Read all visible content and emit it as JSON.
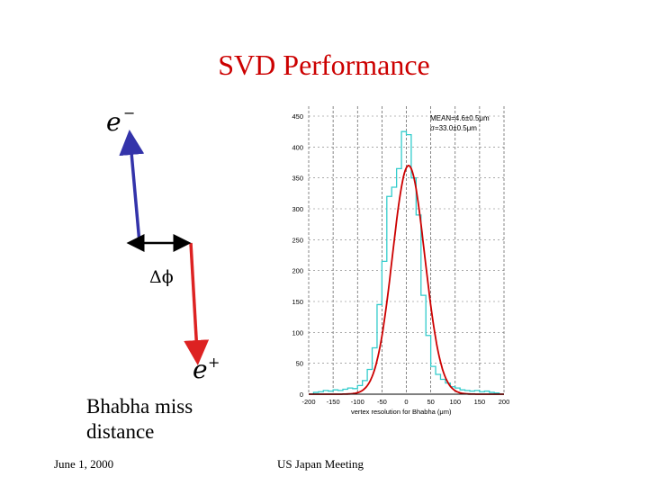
{
  "slide": {
    "title": "SVD Performance",
    "caption": "Bhabha miss\ndistance",
    "footer_left": "June 1, 2000",
    "footer_center": "US Japan Meeting"
  },
  "diagram": {
    "electron_label": "e",
    "electron_sup": "−",
    "positron_label": "e",
    "positron_sup": "+",
    "delta_phi_label": "Δϕ",
    "electron_color": "#3333aa",
    "positron_color": "#dd2222"
  },
  "chart_data": {
    "type": "histogram",
    "xlabel": "vertex resolution for Bhabha (μm)",
    "ylabel": "",
    "xlim": [
      -200,
      200
    ],
    "ylim": [
      0,
      450
    ],
    "x_ticks": [
      -200,
      -150,
      -100,
      -50,
      0,
      50,
      100,
      150,
      200
    ],
    "y_ticks": [
      0,
      50,
      100,
      150,
      200,
      250,
      300,
      350,
      400,
      450
    ],
    "grid": true,
    "stats": [
      "MEAN=4.6±0.5μm",
      "σ=33.0±0.5μm"
    ],
    "histogram_color": "#33cccc",
    "fit_color": "#cc0000",
    "bin_width": 10,
    "bin_starts": [
      -190,
      -180,
      -170,
      -160,
      -150,
      -140,
      -130,
      -120,
      -110,
      -100,
      -90,
      -80,
      -70,
      -60,
      -50,
      -40,
      -30,
      -20,
      -10,
      0,
      10,
      20,
      30,
      40,
      50,
      60,
      70,
      80,
      90,
      100,
      110,
      120,
      130,
      140,
      150,
      160,
      170,
      180
    ],
    "bin_counts": [
      3,
      4,
      6,
      5,
      7,
      6,
      8,
      10,
      9,
      14,
      22,
      40,
      75,
      145,
      215,
      320,
      335,
      365,
      425,
      420,
      350,
      290,
      160,
      95,
      45,
      32,
      24,
      18,
      12,
      10,
      7,
      6,
      5,
      6,
      4,
      5,
      3,
      2
    ],
    "fit": {
      "function": "gaussian",
      "mean": 4.6,
      "sigma": 33.0,
      "peak": 370
    }
  }
}
